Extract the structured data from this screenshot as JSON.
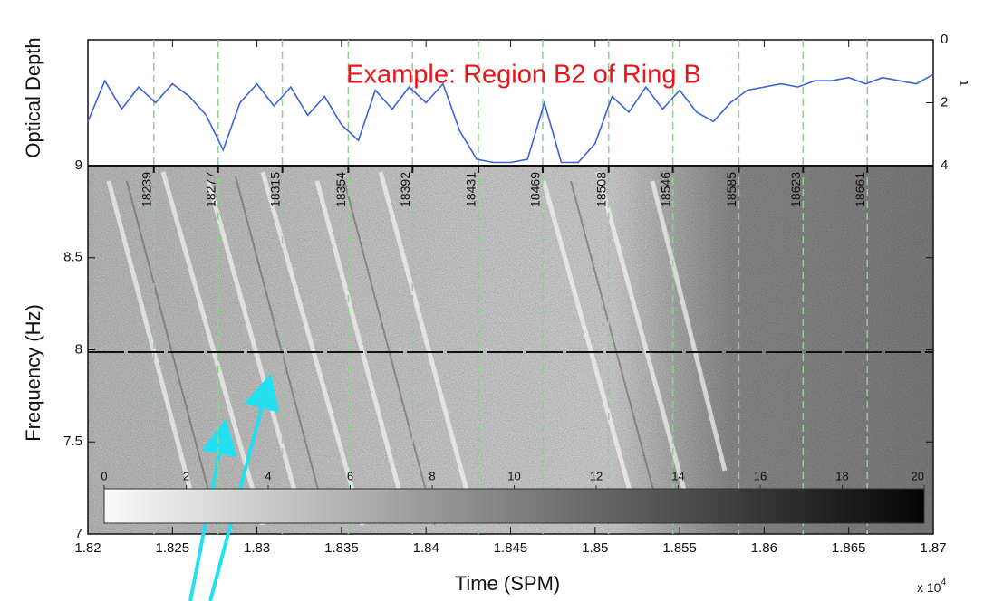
{
  "chart_data": [
    {
      "type": "line",
      "ylabel": "Optical Depth",
      "y2label": "τ",
      "annotation": "Example: Region B2 of Ring B",
      "x": [
        1.82,
        1.821,
        1.822,
        1.823,
        1.824,
        1.825,
        1.826,
        1.827,
        1.828,
        1.829,
        1.83,
        1.831,
        1.832,
        1.833,
        1.834,
        1.835,
        1.836,
        1.837,
        1.838,
        1.839,
        1.84,
        1.841,
        1.842,
        1.843,
        1.844,
        1.845,
        1.846,
        1.847,
        1.848,
        1.849,
        1.85,
        1.851,
        1.852,
        1.853,
        1.854,
        1.855,
        1.856,
        1.857,
        1.858,
        1.859,
        1.86,
        1.861,
        1.862,
        1.863,
        1.864,
        1.865,
        1.866,
        1.867,
        1.868,
        1.869,
        1.87
      ],
      "series": [
        {
          "color": "#3a62d8",
          "axis": "y2",
          "values": [
            2.6,
            1.3,
            2.2,
            1.5,
            2.0,
            1.4,
            1.8,
            2.4,
            3.5,
            2.0,
            1.4,
            2.1,
            1.5,
            2.4,
            1.8,
            2.7,
            3.2,
            1.6,
            2.2,
            1.5,
            2.0,
            1.4,
            2.9,
            3.8,
            3.9,
            3.9,
            3.8,
            2.0,
            3.9,
            3.9,
            3.3,
            1.8,
            2.3,
            1.5,
            2.2,
            1.6,
            2.3,
            2.6,
            2.0,
            1.6,
            1.5,
            1.4,
            1.5,
            1.3,
            1.3,
            1.2,
            1.4,
            1.2,
            1.3,
            1.4,
            1.1
          ]
        }
      ],
      "xlim": [
        1.82,
        1.87
      ],
      "y2lim": [
        4,
        0
      ],
      "y2ticks": [
        0,
        2,
        4
      ]
    },
    {
      "type": "spectrogram",
      "ylabel": "Frequency (Hz)",
      "xlabel": "Time (SPM)",
      "x_multiplier": "x 10",
      "x_multiplier_exponent": "4",
      "xlim": [
        1.82,
        1.87
      ],
      "xticks": [
        1.82,
        1.825,
        1.83,
        1.835,
        1.84,
        1.845,
        1.85,
        1.855,
        1.86,
        1.865,
        1.87
      ],
      "ylim": [
        7,
        9
      ],
      "yticks": [
        7,
        7.5,
        8,
        8.5,
        9
      ],
      "ring_line_color": "#8fcf8f",
      "ring_lines": [
        {
          "value": 1.8239,
          "label": "18239"
        },
        {
          "value": 1.8277,
          "label": "18277"
        },
        {
          "value": 1.8315,
          "label": "18315"
        },
        {
          "value": 1.8354,
          "label": "18354"
        },
        {
          "value": 1.8392,
          "label": "18392"
        },
        {
          "value": 1.8431,
          "label": "18431"
        },
        {
          "value": 1.8469,
          "label": "18469"
        },
        {
          "value": 1.8508,
          "label": "18508"
        },
        {
          "value": 1.8546,
          "label": "18546"
        },
        {
          "value": 1.8585,
          "label": "18585"
        },
        {
          "value": 1.8623,
          "label": "18623"
        },
        {
          "value": 1.8661,
          "label": "18661"
        }
      ],
      "colorbar": {
        "lim": [
          0,
          20
        ],
        "ticks": [
          0,
          2,
          4,
          6,
          8,
          10,
          12,
          14,
          16,
          18,
          20
        ]
      }
    }
  ]
}
